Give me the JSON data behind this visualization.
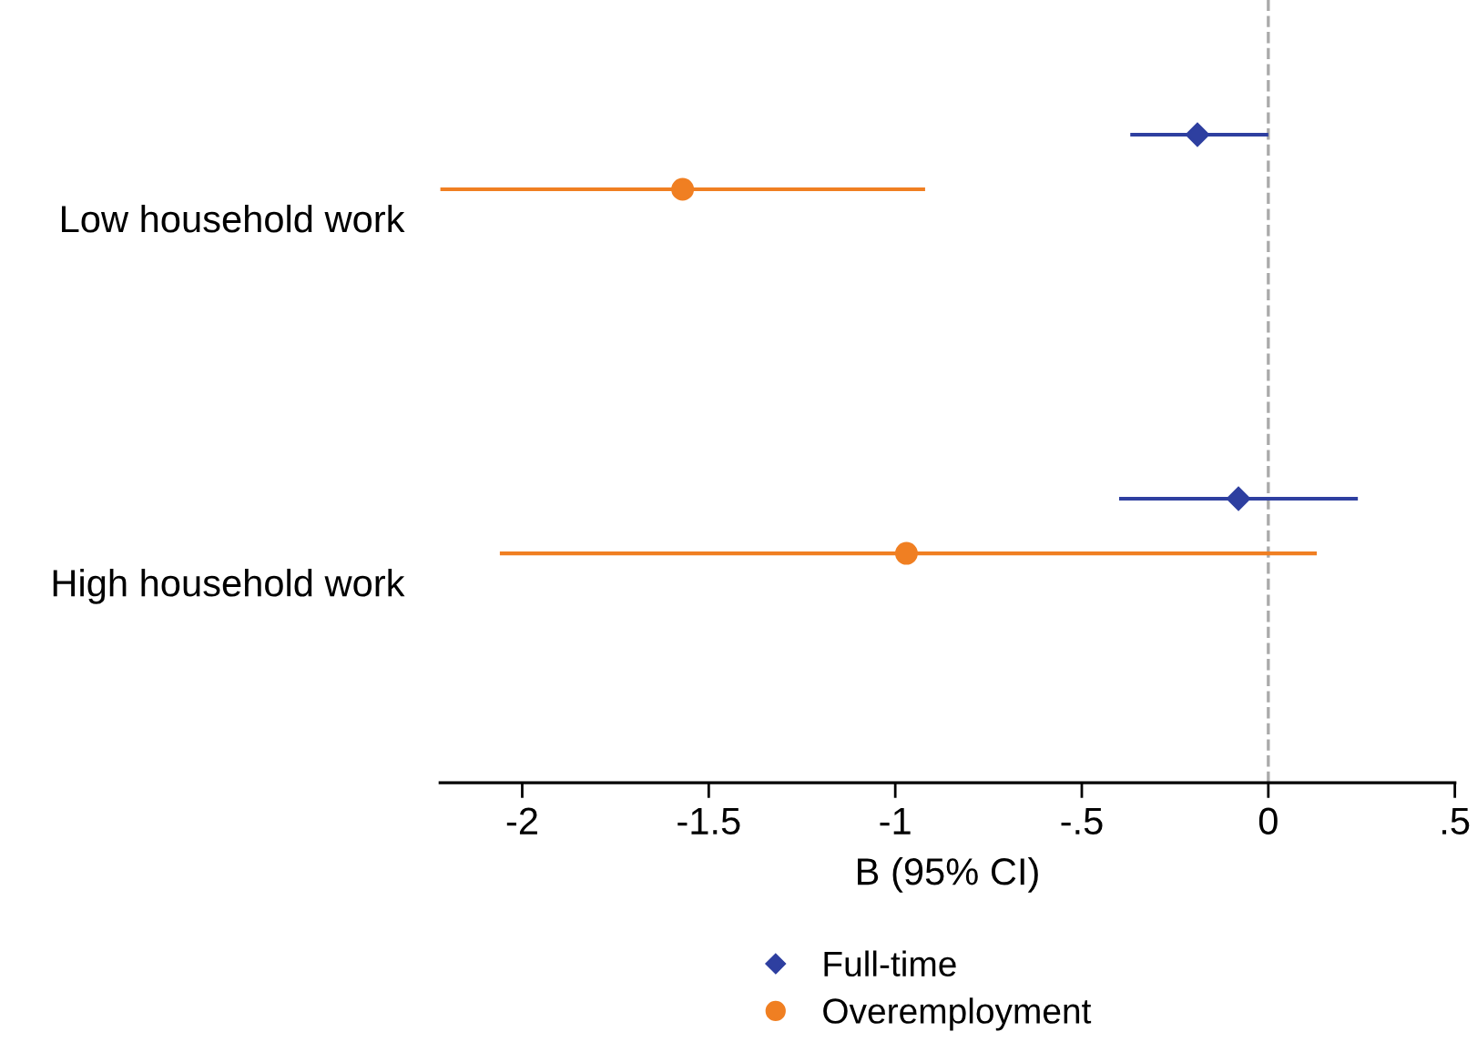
{
  "chart_data": {
    "type": "scatter",
    "orientation": "horizontal",
    "xlabel": "B (95% CI)",
    "categories": [
      "Low household work",
      "High household work"
    ],
    "series": [
      {
        "name": "Full-time",
        "color": "#2e3fa0",
        "marker": "diamond",
        "values": [
          -0.19,
          -0.08
        ],
        "errors": [
          [
            -0.37,
            0.0
          ],
          [
            -0.4,
            0.24
          ]
        ]
      },
      {
        "name": "Overemployment",
        "color": "#f07f22",
        "marker": "circle",
        "values": [
          -1.57,
          -0.97
        ],
        "errors": [
          [
            -2.22,
            -0.92
          ],
          [
            -2.06,
            0.13
          ]
        ]
      }
    ],
    "xlim": [
      -2.22,
      0.5
    ],
    "xticks": [
      -2,
      {
        "value": -1.5,
        "label": "-1.5"
      },
      -1,
      {
        "value": -0.5,
        "label": "-.5"
      },
      0,
      {
        "value": 0.5,
        "label": ".5"
      }
    ],
    "ref_lines": [
      {
        "axis": "x",
        "value": 0,
        "color": "#aaaaaa",
        "line_style": "dashed"
      }
    ],
    "legend": "bottom",
    "grid": false
  }
}
